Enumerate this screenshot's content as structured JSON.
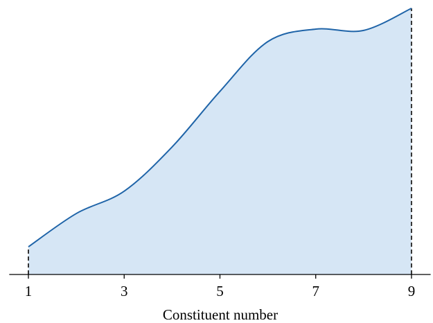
{
  "chart_data": {
    "type": "area",
    "x_label": "Constituent number",
    "x": [
      1,
      2,
      3,
      4,
      5,
      6,
      7,
      8,
      9
    ],
    "series": [
      {
        "color": "#1f64a8",
        "fill": "#d6e6f5",
        "values": [
          10.4,
          22.9,
          31.3,
          47.9,
          68.8,
          87.5,
          92.2,
          91.7,
          100
        ]
      }
    ],
    "xlim": [
      0.6,
      9.4
    ],
    "xticks": [
      1,
      3,
      5,
      7,
      9
    ],
    "ylim": [
      0,
      100
    ]
  }
}
